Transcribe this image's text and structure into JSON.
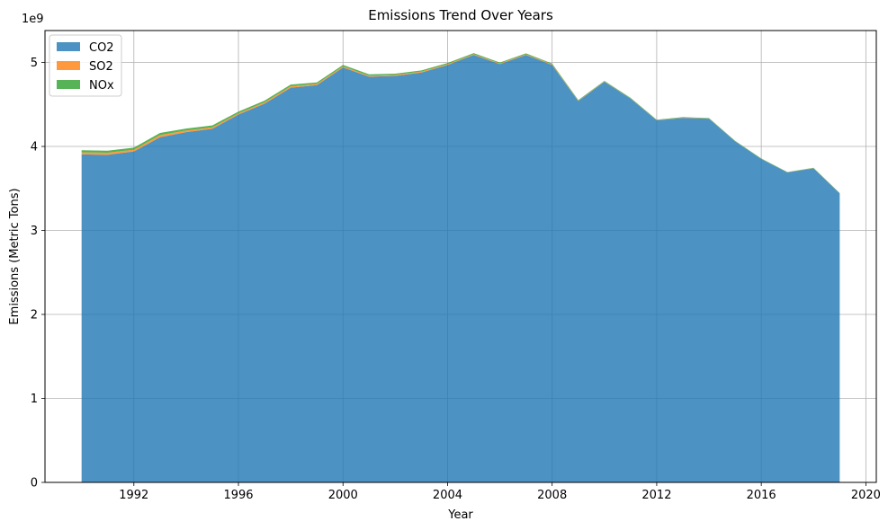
{
  "chart_data": {
    "type": "area",
    "stacked": true,
    "title": "Emissions Trend Over Years",
    "xlabel": "Year",
    "ylabel": "Emissions (Metric Tons)",
    "y_offset_label": "1e9",
    "y_scale": 1000000000,
    "xlim": [
      1988.6,
      2020.4
    ],
    "ylim": [
      0,
      5.38
    ],
    "xticks": [
      1992,
      1996,
      2000,
      2004,
      2008,
      2012,
      2016,
      2020
    ],
    "yticks": [
      0,
      1,
      2,
      3,
      4,
      5
    ],
    "grid": true,
    "legend_position": "upper-left",
    "x": [
      1990,
      1991,
      1992,
      1993,
      1994,
      1995,
      1996,
      1997,
      1998,
      1999,
      2000,
      2001,
      2002,
      2003,
      2004,
      2005,
      2006,
      2007,
      2008,
      2009,
      2010,
      2011,
      2012,
      2013,
      2014,
      2015,
      2016,
      2017,
      2018,
      2019
    ],
    "series": [
      {
        "name": "CO2",
        "color": "#1f77b4",
        "values": [
          3.905,
          3.9,
          3.94,
          4.11,
          4.17,
          4.21,
          4.38,
          4.51,
          4.7,
          4.73,
          4.94,
          4.83,
          4.84,
          4.88,
          4.97,
          5.09,
          4.98,
          5.09,
          4.97,
          4.54,
          4.77,
          4.57,
          4.31,
          4.34,
          4.33,
          4.06,
          3.85,
          3.69,
          3.74,
          3.44
        ]
      },
      {
        "name": "SO2",
        "color": "#ff7f0e",
        "values": [
          0.025,
          0.025,
          0.022,
          0.025,
          0.02,
          0.018,
          0.015,
          0.016,
          0.017,
          0.015,
          0.014,
          0.013,
          0.012,
          0.012,
          0.01,
          0.009,
          0.008,
          0.008,
          0.007,
          0.005,
          0.004,
          0.003,
          0.003,
          0.003,
          0.003,
          0.002,
          0.002,
          0.002,
          0.002,
          0.002
        ]
      },
      {
        "name": "NOx",
        "color": "#2ca02c",
        "values": [
          0.025,
          0.025,
          0.023,
          0.025,
          0.023,
          0.022,
          0.02,
          0.02,
          0.02,
          0.018,
          0.017,
          0.015,
          0.015,
          0.014,
          0.013,
          0.012,
          0.011,
          0.011,
          0.01,
          0.008,
          0.007,
          0.006,
          0.006,
          0.006,
          0.005,
          0.005,
          0.005,
          0.004,
          0.004,
          0.004
        ]
      }
    ]
  }
}
